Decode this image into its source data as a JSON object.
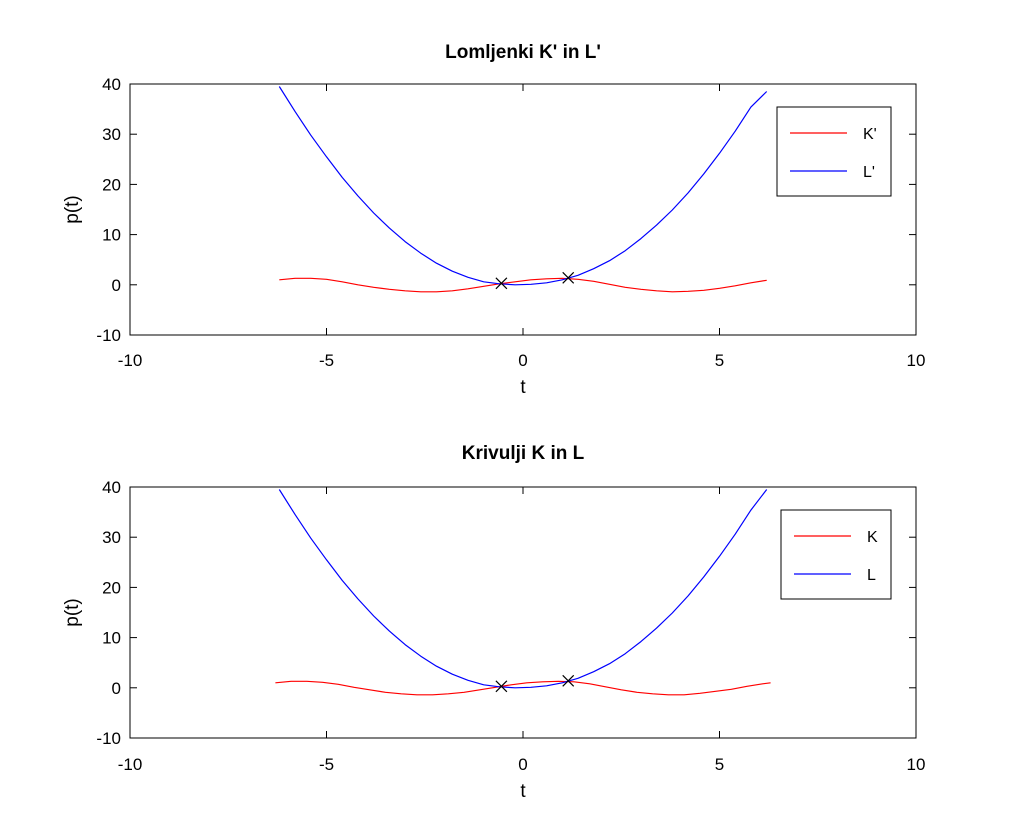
{
  "chart_data": [
    {
      "type": "line",
      "title": "Lomljenki K' in L'",
      "xlabel": "t",
      "ylabel": "p(t)",
      "xlim": [
        -10,
        10
      ],
      "ylim": [
        -10,
        40
      ],
      "xticks": [
        "-10",
        "-5",
        "0",
        "5",
        "10"
      ],
      "yticks": [
        "-10",
        "0",
        "10",
        "20",
        "30",
        "40"
      ],
      "legend_position": "top-right",
      "series": [
        {
          "name": "K'",
          "color": "#ff0000",
          "x": [
            -6.2,
            -5.8,
            -5.4,
            -5.0,
            -4.6,
            -4.2,
            -3.8,
            -3.4,
            -3.0,
            -2.6,
            -2.2,
            -1.8,
            -1.4,
            -1.0,
            -0.6,
            -0.2,
            0.2,
            0.6,
            1.0,
            1.4,
            1.8,
            2.2,
            2.6,
            3.0,
            3.4,
            3.8,
            4.2,
            4.6,
            5.0,
            5.4,
            5.8,
            6.2
          ],
          "y": [
            1.0,
            1.3,
            1.3,
            1.1,
            0.6,
            0.0,
            -0.5,
            -0.9,
            -1.2,
            -1.4,
            -1.4,
            -1.2,
            -0.8,
            -0.3,
            0.2,
            0.6,
            1.0,
            1.2,
            1.3,
            1.1,
            0.7,
            0.1,
            -0.5,
            -0.9,
            -1.2,
            -1.4,
            -1.3,
            -1.1,
            -0.7,
            -0.2,
            0.4,
            0.9
          ]
        },
        {
          "name": "L'",
          "color": "#0000ff",
          "x": [
            -6.2,
            -5.8,
            -5.4,
            -5.0,
            -4.6,
            -4.2,
            -3.8,
            -3.4,
            -3.0,
            -2.6,
            -2.2,
            -1.8,
            -1.4,
            -1.0,
            -0.6,
            -0.2,
            0.2,
            0.6,
            1.0,
            1.4,
            1.8,
            2.2,
            2.6,
            3.0,
            3.4,
            3.8,
            4.2,
            4.6,
            5.0,
            5.4,
            5.8,
            6.2
          ],
          "y": [
            39.5,
            34.5,
            29.8,
            25.5,
            21.4,
            17.7,
            14.3,
            11.3,
            8.6,
            6.3,
            4.3,
            2.7,
            1.5,
            0.6,
            0.2,
            0.0,
            0.1,
            0.4,
            1.0,
            1.9,
            3.2,
            4.8,
            6.8,
            9.2,
            11.9,
            14.9,
            18.3,
            22.1,
            26.2,
            30.6,
            35.4,
            38.5
          ]
        }
      ],
      "markers": [
        {
          "x": -0.55,
          "y": 0.3,
          "symbol": "x"
        },
        {
          "x": 1.15,
          "y": 1.4,
          "symbol": "x"
        }
      ]
    },
    {
      "type": "line",
      "title": "Krivulji K in L",
      "xlabel": "t",
      "ylabel": "p(t)",
      "xlim": [
        -10,
        10
      ],
      "ylim": [
        -10,
        40
      ],
      "xticks": [
        "-10",
        "-5",
        "0",
        "5",
        "10"
      ],
      "yticks": [
        "-10",
        "0",
        "10",
        "20",
        "30",
        "40"
      ],
      "legend_position": "top-right",
      "series": [
        {
          "name": "K",
          "color": "#ff0000",
          "x": [
            -6.3,
            -5.9,
            -5.5,
            -5.1,
            -4.7,
            -4.3,
            -3.9,
            -3.5,
            -3.1,
            -2.7,
            -2.3,
            -1.9,
            -1.5,
            -1.1,
            -0.7,
            -0.3,
            0.1,
            0.5,
            0.9,
            1.3,
            1.7,
            2.1,
            2.5,
            2.9,
            3.3,
            3.7,
            4.1,
            4.5,
            4.9,
            5.3,
            5.7,
            6.1,
            6.3
          ],
          "y": [
            1.0,
            1.3,
            1.3,
            1.1,
            0.7,
            0.1,
            -0.4,
            -0.9,
            -1.2,
            -1.4,
            -1.4,
            -1.2,
            -0.9,
            -0.4,
            0.1,
            0.6,
            1.0,
            1.2,
            1.3,
            1.2,
            0.8,
            0.2,
            -0.4,
            -0.9,
            -1.2,
            -1.4,
            -1.4,
            -1.1,
            -0.7,
            -0.3,
            0.3,
            0.8,
            1.0
          ]
        },
        {
          "name": "L",
          "color": "#0000ff",
          "x": [
            -6.2,
            -5.8,
            -5.4,
            -5.0,
            -4.6,
            -4.2,
            -3.8,
            -3.4,
            -3.0,
            -2.6,
            -2.2,
            -1.8,
            -1.4,
            -1.0,
            -0.6,
            -0.2,
            0.2,
            0.6,
            1.0,
            1.4,
            1.8,
            2.2,
            2.6,
            3.0,
            3.4,
            3.8,
            4.2,
            4.6,
            5.0,
            5.4,
            5.8,
            6.2
          ],
          "y": [
            39.5,
            34.5,
            29.8,
            25.5,
            21.4,
            17.7,
            14.3,
            11.3,
            8.6,
            6.3,
            4.3,
            2.7,
            1.5,
            0.6,
            0.2,
            0.0,
            0.1,
            0.4,
            1.0,
            1.9,
            3.2,
            4.8,
            6.8,
            9.2,
            11.9,
            14.9,
            18.3,
            22.1,
            26.2,
            30.6,
            35.4,
            39.5
          ]
        }
      ],
      "markers": [
        {
          "x": -0.55,
          "y": 0.3,
          "symbol": "x"
        },
        {
          "x": 1.15,
          "y": 1.4,
          "symbol": "x"
        }
      ]
    }
  ]
}
